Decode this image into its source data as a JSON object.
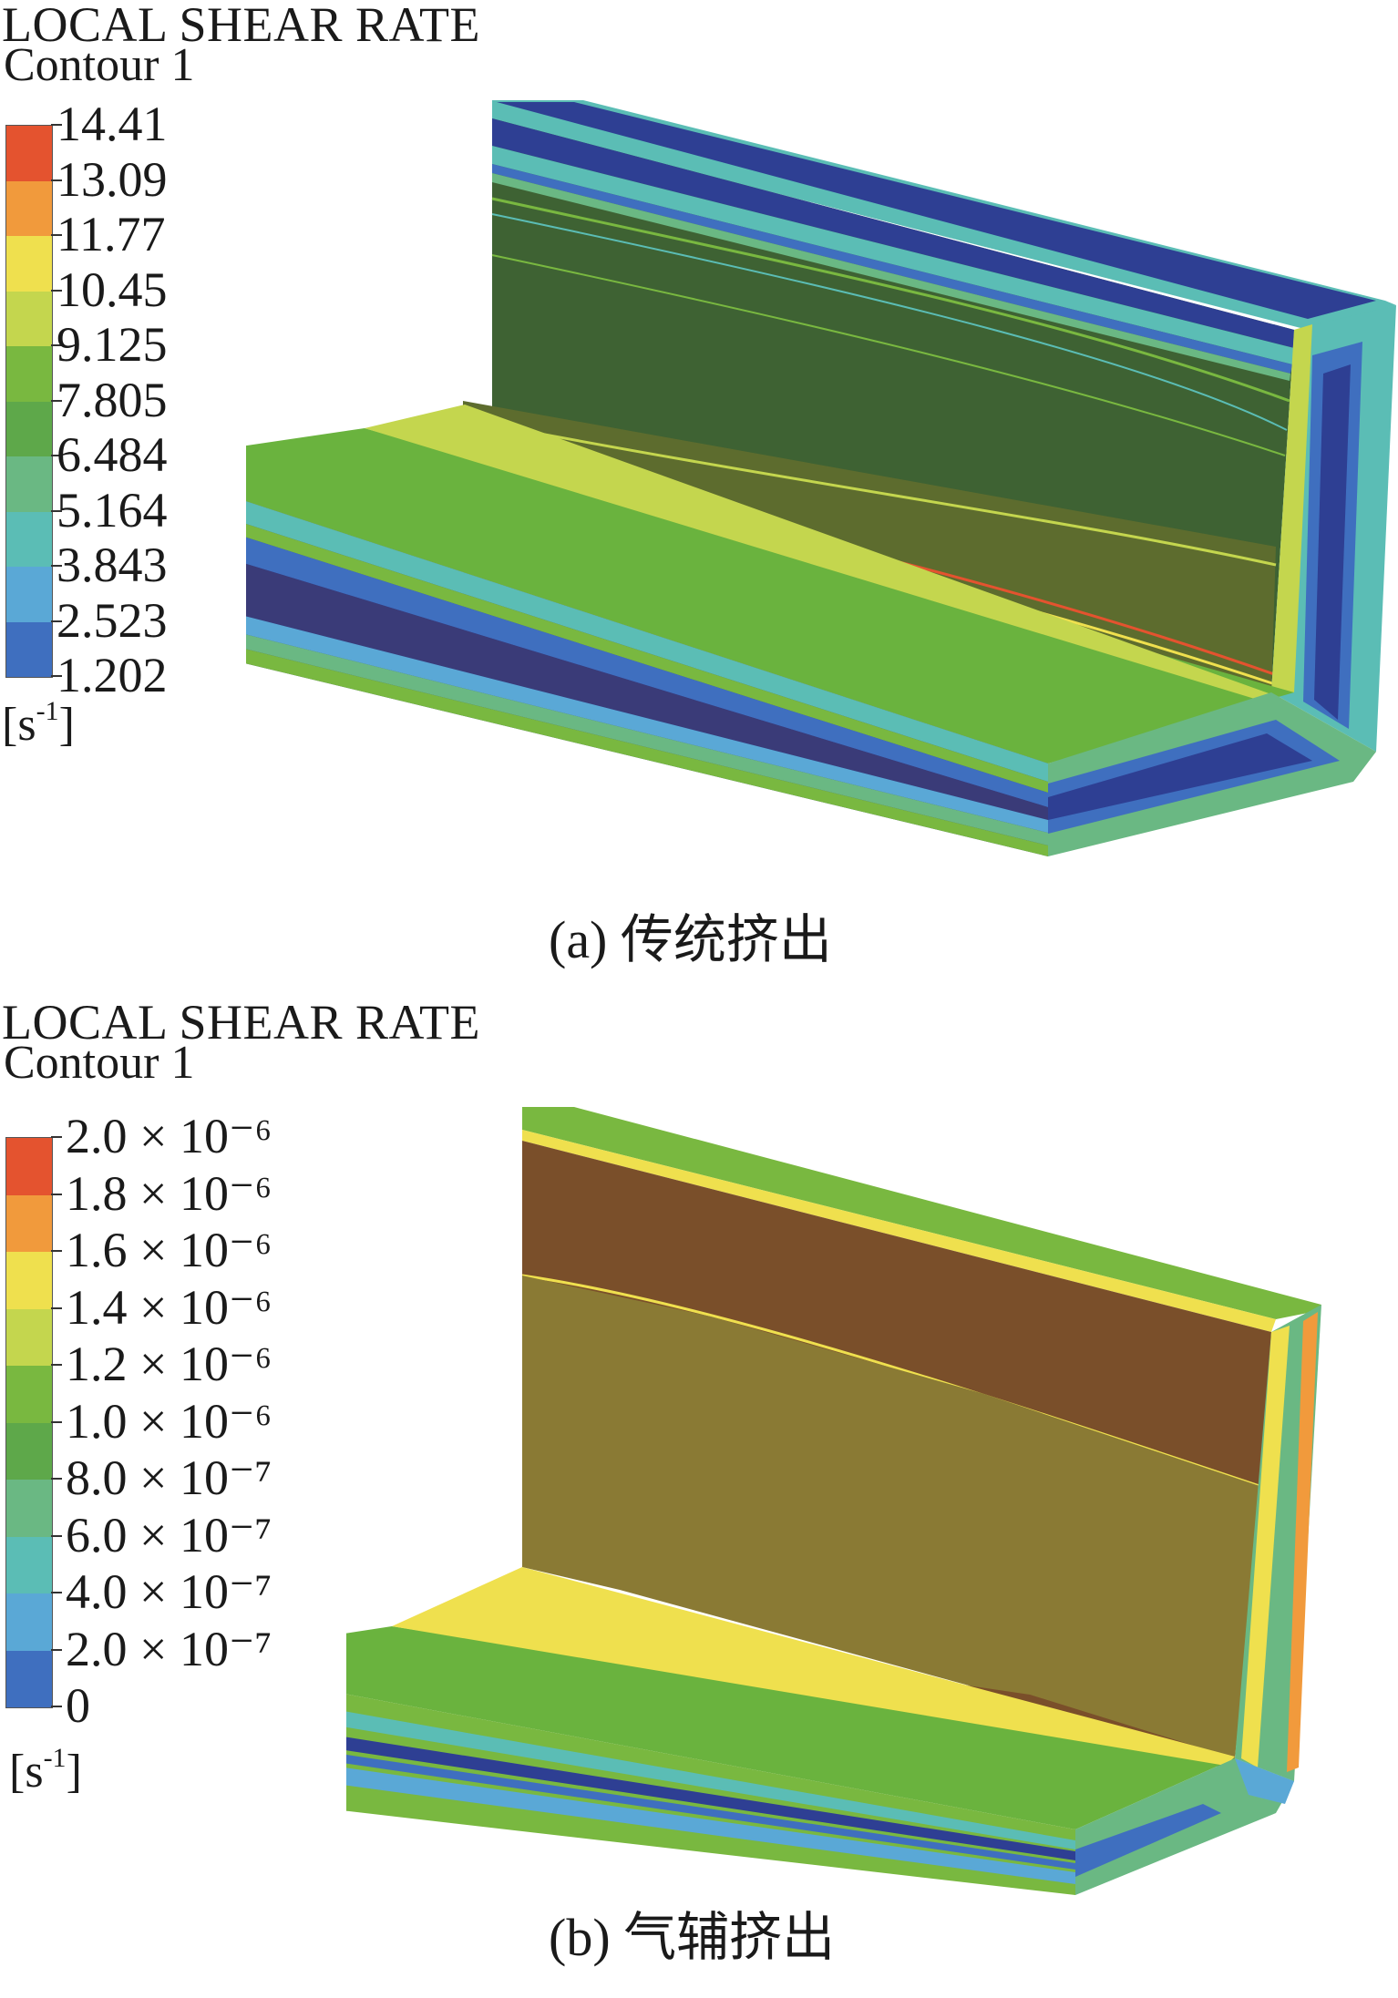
{
  "panel_a": {
    "legend_title": "LOCAL SHEAR RATE",
    "legend_sub": "Contour 1",
    "ticks": [
      "14.41",
      "13.09",
      "11.77",
      "10.45",
      "9.125",
      "7.805",
      "6.484",
      "5.164",
      "3.843",
      "2.523",
      "1.202"
    ],
    "unit_base": "[s",
    "unit_exp": "-1",
    "unit_close": "]",
    "caption": "(a) 传统挤出"
  },
  "panel_b": {
    "legend_title": "LOCAL SHEAR RATE",
    "legend_sub": "Contour 1",
    "ticks": [
      "2.0 × 10⁻⁶",
      "1.8 × 10⁻⁶",
      "1.6 × 10⁻⁶",
      "1.4 × 10⁻⁶",
      "1.2 × 10⁻⁶",
      "1.0 × 10⁻⁶",
      "8.0 × 10⁻⁷",
      "6.0 × 10⁻⁷",
      "4.0 × 10⁻⁷",
      "2.0 × 10⁻⁷",
      "0"
    ],
    "unit_base": "[s",
    "unit_exp": "-1",
    "unit_close": "]",
    "caption": "(b) 气辅挤出"
  },
  "colormap": [
    "#e4532f",
    "#f19a3c",
    "#efe04e",
    "#c4d64e",
    "#79b840",
    "#5ea84a",
    "#6ab883",
    "#5bbdb5",
    "#5aa8d6",
    "#3f6fbf",
    "#2e3f93"
  ],
  "colors": {
    "a_wall_face": "#3e6233",
    "a_wall_lower_band": "#5d6c2e",
    "a_base_top": "#6ab33e",
    "a_base_front_dark": "#3a3b78",
    "b_wall_upper": "#7a4f2a",
    "b_wall_lower": "#8a7a34",
    "b_base_top": "#6ab33e"
  }
}
